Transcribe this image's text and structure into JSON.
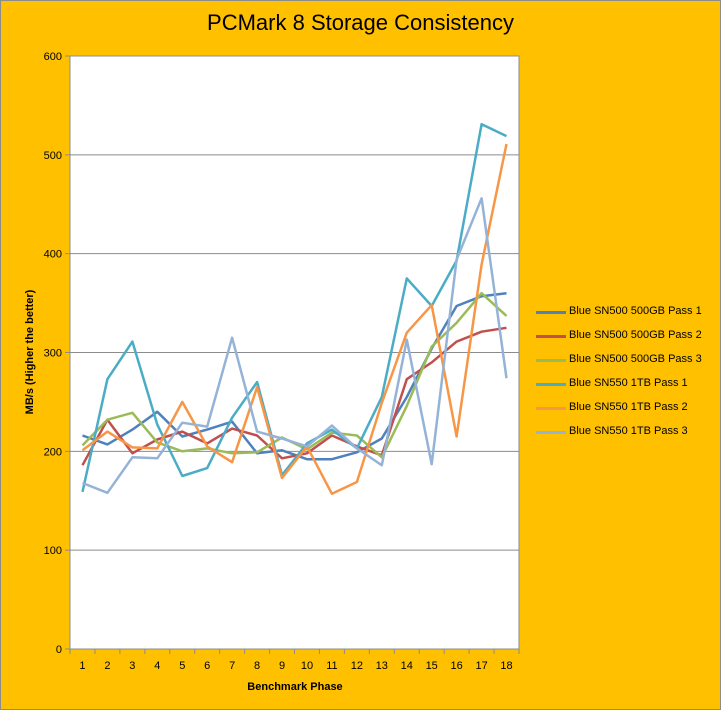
{
  "chart_data": {
    "type": "line",
    "title": "PCMark 8 Storage Consistency",
    "xlabel": "Benchmark Phase",
    "ylabel": "MB/s (Higher the better)",
    "ylim": [
      0,
      600
    ],
    "yticks": [
      0,
      100,
      200,
      300,
      400,
      500,
      600
    ],
    "grid": true,
    "legend_position": "right",
    "categories": [
      "1",
      "2",
      "3",
      "4",
      "5",
      "6",
      "7",
      "8",
      "9",
      "10",
      "11",
      "12",
      "13",
      "14",
      "15",
      "16",
      "17",
      "18"
    ],
    "series": [
      {
        "name": "Blue SN500 500GB Pass 1",
        "color": "#4f81bd",
        "values": [
          216,
          207,
          222,
          240,
          215,
          222,
          230,
          198,
          201,
          192,
          192,
          199,
          213,
          255,
          304,
          347,
          357,
          360
        ]
      },
      {
        "name": "Blue SN500 500GB Pass 2",
        "color": "#c0504d",
        "values": [
          186,
          232,
          198,
          212,
          220,
          208,
          223,
          216,
          193,
          198,
          216,
          205,
          196,
          273,
          290,
          311,
          321,
          325
        ]
      },
      {
        "name": "Blue SN500 500GB Pass 3",
        "color": "#9bbb59",
        "values": [
          206,
          232,
          239,
          209,
          200,
          203,
          198,
          199,
          214,
          202,
          219,
          216,
          194,
          246,
          306,
          330,
          360,
          337
        ]
      },
      {
        "name": "Blue SN550 1TB Pass 1",
        "color": "#4bacc6",
        "values": [
          159,
          273,
          311,
          227,
          175,
          183,
          234,
          270,
          176,
          208,
          222,
          203,
          255,
          375,
          347,
          393,
          531,
          519
        ]
      },
      {
        "name": "Blue SN550 1TB Pass 2",
        "color": "#f79646",
        "values": [
          201,
          220,
          204,
          203,
          250,
          205,
          189,
          265,
          173,
          205,
          157,
          169,
          249,
          320,
          348,
          215,
          389,
          511
        ]
      },
      {
        "name": "Blue SN550 1TB Pass 3",
        "color": "#95b3d7",
        "values": [
          168,
          158,
          194,
          193,
          229,
          225,
          315,
          220,
          213,
          205,
          226,
          203,
          186,
          313,
          187,
          394,
          456,
          274
        ]
      }
    ]
  }
}
